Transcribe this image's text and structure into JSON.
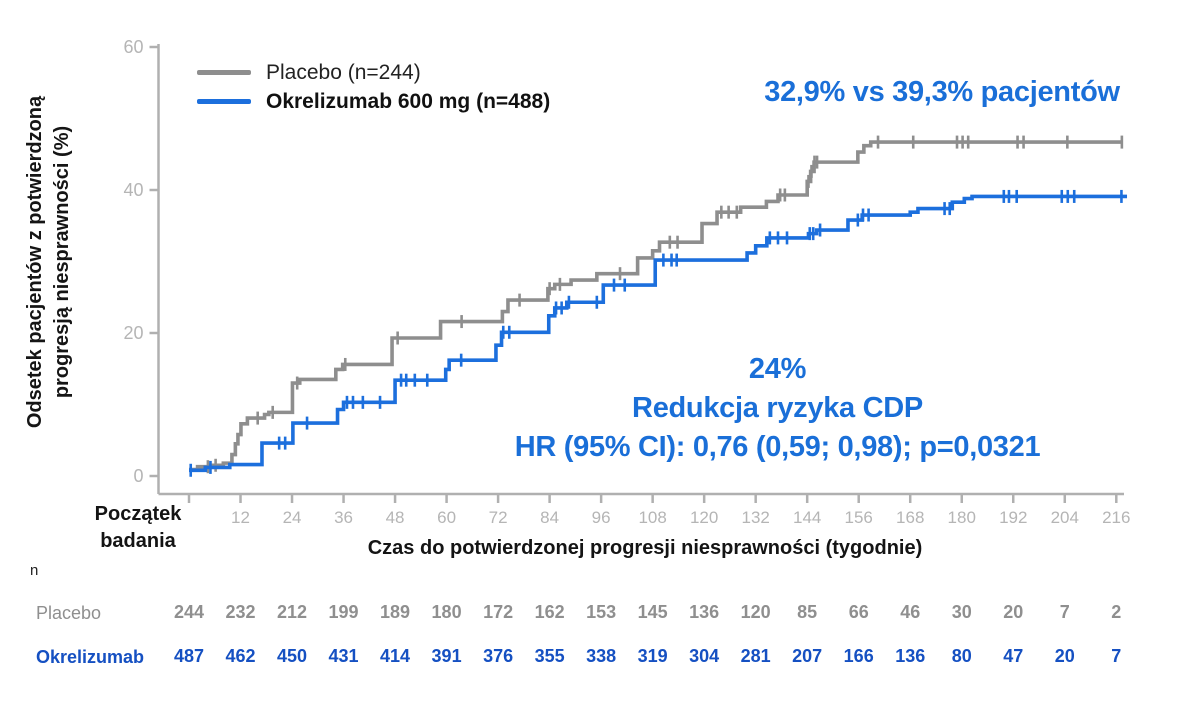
{
  "page": {
    "background": "#ffffff"
  },
  "chart_data": {
    "type": "line",
    "subtype": "kaplan-meier-step",
    "title": "",
    "x_axis": {
      "label": "Czas do potwierdzonej progresji niesprawności (tygodnie)",
      "start_label_lines": [
        "Początek",
        "badania"
      ],
      "tick_weeks": [
        0,
        12,
        24,
        36,
        48,
        60,
        72,
        84,
        96,
        108,
        120,
        132,
        144,
        156,
        168,
        180,
        192,
        204,
        216
      ],
      "xlim": [
        0,
        222
      ],
      "unit": "tygodnie",
      "tick_color": "#b5b5b5",
      "axis_color": "#b0b0b0"
    },
    "y_axis": {
      "label_lines": [
        "Odsetek pacjentów z potwierdzoną",
        "progresją niesprawności (%)"
      ],
      "ticks": [
        0,
        20,
        40,
        60
      ],
      "ylim": [
        0,
        60
      ],
      "tick_color": "#b5b5b5"
    },
    "legend": {
      "position": "top-left-inside",
      "entries": [
        {
          "label": "Placebo (n=244)",
          "color": "#8e8e8e"
        },
        {
          "label": "Okrelizumab 600 mg (n=488)",
          "color": "#1c6fdd"
        }
      ]
    },
    "series": [
      {
        "name": "Placebo",
        "n": 244,
        "color": "#8e8e8e",
        "final_pct": 46.7,
        "end_week": 217.5,
        "steps_week_pct": [
          [
            0,
            0.9
          ],
          [
            2,
            1.3
          ],
          [
            5,
            1.5
          ],
          [
            8,
            1.8
          ],
          [
            10,
            3.0
          ],
          [
            10.8,
            4.5
          ],
          [
            11.4,
            5.8
          ],
          [
            12.1,
            7.3
          ],
          [
            13.6,
            8.1
          ],
          [
            17.6,
            8.6
          ],
          [
            18.6,
            8.9
          ],
          [
            24.1,
            13.0
          ],
          [
            25.8,
            13.5
          ],
          [
            34.2,
            14.9
          ],
          [
            35.8,
            15.6
          ],
          [
            47.3,
            19.3
          ],
          [
            58.6,
            21.6
          ],
          [
            73,
            23.0
          ],
          [
            74.3,
            24.6
          ],
          [
            83.6,
            26.2
          ],
          [
            85.2,
            26.8
          ],
          [
            89,
            27.4
          ],
          [
            95,
            28.3
          ],
          [
            104.5,
            30.5
          ],
          [
            108,
            31.5
          ],
          [
            109.6,
            32.7
          ],
          [
            119.5,
            35.3
          ],
          [
            123,
            36.9
          ],
          [
            128.5,
            37.6
          ],
          [
            134.5,
            38.4
          ],
          [
            137.2,
            39.3
          ],
          [
            144,
            41.2
          ],
          [
            144.8,
            42.6
          ],
          [
            145.6,
            43.9
          ],
          [
            155.8,
            45.3
          ],
          [
            157.2,
            46.2
          ],
          [
            158.8,
            46.7
          ]
        ],
        "censor_weeks": [
          4.4,
          6.2,
          16,
          19.5,
          25.2,
          36.4,
          48.6,
          63.5,
          77,
          84,
          86.4,
          100.4,
          112,
          113.8,
          124,
          125.7,
          127.6,
          137.7,
          138.8,
          144.3,
          145,
          145.7,
          146.3,
          160.5,
          168.7,
          178.9,
          180.2,
          181.5,
          193,
          194.4,
          204.6,
          217.3
        ]
      },
      {
        "name": "Okrelizumab 600 mg",
        "n": 488,
        "color": "#1c6fdd",
        "final_pct": 39.1,
        "end_week": 218.5,
        "steps_week_pct": [
          [
            0,
            0.8
          ],
          [
            3.8,
            1.2
          ],
          [
            9.5,
            1.6
          ],
          [
            17,
            4.6
          ],
          [
            24.2,
            7.4
          ],
          [
            34.6,
            9.3
          ],
          [
            36,
            10.3
          ],
          [
            48,
            13.4
          ],
          [
            59.8,
            14.9
          ],
          [
            60.6,
            16.2
          ],
          [
            71.5,
            18.3
          ],
          [
            72.8,
            20.1
          ],
          [
            83.8,
            22.4
          ],
          [
            85.2,
            23.5
          ],
          [
            88,
            24.3
          ],
          [
            96.5,
            26.7
          ],
          [
            108.6,
            30.2
          ],
          [
            130,
            31.2
          ],
          [
            132,
            32.2
          ],
          [
            134.6,
            33.3
          ],
          [
            144.3,
            33.9
          ],
          [
            146.2,
            34.4
          ],
          [
            153.5,
            35.8
          ],
          [
            156.8,
            36.5
          ],
          [
            168,
            36.9
          ],
          [
            169.8,
            37.4
          ],
          [
            177.8,
            38.3
          ],
          [
            180.6,
            38.8
          ],
          [
            182.4,
            39.1
          ]
        ],
        "censor_weeks": [
          0.4,
          5,
          21,
          22.4,
          27.5,
          36.8,
          38.2,
          40.5,
          44.5,
          49.4,
          50.6,
          52.6,
          55.5,
          63.4,
          73.2,
          74.6,
          85.5,
          86.8,
          88.5,
          95,
          99,
          101.5,
          110.5,
          112.4,
          113.6,
          135.3,
          137.2,
          139.3,
          144.6,
          145.4,
          147,
          155.8,
          157,
          158.3,
          176,
          177.2,
          189.8,
          191,
          192.8,
          203.3,
          204.7,
          206.2,
          217.2
        ]
      }
    ],
    "annotations": {
      "top_right": "32,9% vs 39,3% pacjentów",
      "center_lines": [
        "24%",
        "Redukcja ryzyka CDP",
        "HR (95% CI): 0,76 (0,59; 0,98); p=0,0321"
      ],
      "color": "#1a6fd8"
    },
    "risk_table": {
      "axis_label": "n",
      "rows": [
        {
          "label": "Placebo",
          "color": "#8f8f8f",
          "values": [
            244,
            232,
            212,
            199,
            189,
            180,
            172,
            162,
            153,
            145,
            136,
            120,
            85,
            66,
            46,
            30,
            20,
            7,
            2
          ]
        },
        {
          "label": "Okrelizumab",
          "color": "#1550c2",
          "values": [
            487,
            462,
            450,
            431,
            414,
            391,
            376,
            355,
            338,
            319,
            304,
            281,
            207,
            166,
            136,
            80,
            47,
            20,
            7
          ]
        }
      ]
    },
    "grid": false
  }
}
